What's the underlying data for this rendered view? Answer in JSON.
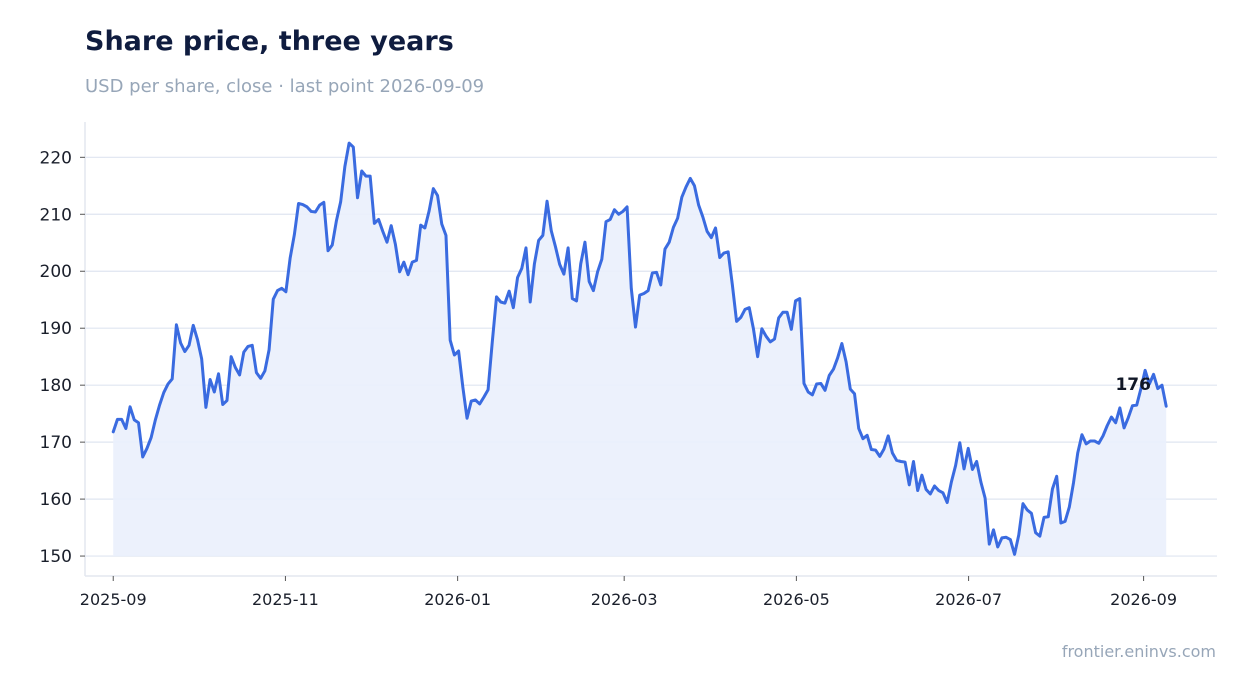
{
  "header": {
    "title": "Share price, three years",
    "subtitle": "USD per share, close · last point 2026-09-09"
  },
  "footer": {
    "credit": "frontier.eninvs.com"
  },
  "colors": {
    "line": "#3a6be0",
    "fill": "#eaf0fc",
    "grid": "#dfe5f1",
    "axis": "#e3e7ef"
  },
  "chart_data": {
    "type": "area",
    "title": "Share price, three years",
    "subtitle": "USD per share, close · last point 2026-09-09",
    "xlabel": "",
    "ylabel": "",
    "x_range": [
      "2025-08-22",
      "2026-09-27"
    ],
    "ylim": [
      146.5,
      226.2
    ],
    "y_ticks": [
      150,
      160,
      170,
      180,
      190,
      200,
      210,
      220
    ],
    "x_ticks": [
      "2025-09",
      "2025-11",
      "2026-01",
      "2026-03",
      "2026-05",
      "2026-07",
      "2026-09"
    ],
    "grid": true,
    "end_label": "176",
    "series": [
      {
        "start_date": "2025-09-01",
        "end_date": "2026-09-09",
        "values": [
          171.8,
          174.0,
          174.0,
          172.4,
          176.2,
          173.9,
          173.4,
          167.4,
          168.9,
          170.8,
          173.9,
          176.5,
          178.7,
          180.2,
          181.1,
          190.6,
          187.4,
          185.9,
          187.0,
          190.5,
          188.0,
          184.6,
          176.1,
          181.0,
          178.8,
          182.0,
          176.6,
          177.3,
          185.0,
          183.1,
          181.8,
          185.8,
          186.8,
          187.0,
          182.2,
          181.2,
          182.5,
          186.2,
          195.1,
          196.6,
          197.0,
          196.4,
          202.3,
          206.4,
          211.9,
          211.7,
          211.3,
          210.5,
          210.4,
          211.6,
          212.1,
          203.6,
          204.6,
          208.9,
          212.2,
          218.4,
          222.5,
          221.8,
          212.9,
          217.6,
          216.7,
          216.7,
          208.4,
          209.1,
          207.0,
          205.1,
          208.0,
          204.7,
          199.9,
          201.6,
          199.4,
          201.6,
          201.9,
          208.1,
          207.6,
          210.6,
          214.5,
          213.3,
          208.3,
          206.3,
          187.9,
          185.3,
          186.0,
          179.7,
          174.2,
          177.2,
          177.4,
          176.7,
          177.9,
          179.2,
          187.6,
          195.5,
          194.6,
          194.4,
          196.5,
          193.6,
          198.9,
          200.5,
          204.1,
          194.6,
          201.3,
          205.4,
          206.3,
          212.3,
          207.1,
          204.3,
          201.2,
          199.5,
          204.1,
          195.2,
          194.8,
          201.3,
          205.1,
          198.2,
          196.6,
          199.9,
          202.1,
          208.7,
          209.1,
          210.8,
          210.0,
          210.5,
          211.3,
          197.0,
          190.2,
          195.8,
          196.1,
          196.6,
          199.7,
          199.8,
          197.6,
          203.9,
          205.1,
          207.7,
          209.3,
          213.0,
          214.8,
          216.3,
          215.0,
          211.6,
          209.5,
          207.0,
          205.9,
          207.6,
          202.4,
          203.2,
          203.4,
          197.6,
          191.2,
          191.9,
          193.3,
          193.6,
          189.9,
          185.0,
          189.9,
          188.6,
          187.6,
          188.1,
          191.8,
          192.8,
          192.8,
          189.8,
          194.8,
          195.2,
          180.3,
          178.8,
          178.3,
          180.2,
          180.3,
          179.1,
          181.7,
          182.8,
          184.8,
          187.3,
          184.1,
          179.3,
          178.5,
          172.4,
          170.6,
          171.2,
          168.7,
          168.6,
          167.5,
          168.8,
          171.1,
          168.1,
          166.8,
          166.6,
          166.5,
          162.5,
          166.6,
          161.5,
          164.2,
          161.7,
          160.9,
          162.3,
          161.5,
          161.1,
          159.4,
          163.0,
          165.9,
          169.9,
          165.3,
          168.9,
          165.2,
          166.6,
          163.0,
          160.2,
          152.1,
          154.6,
          151.6,
          153.2,
          153.3,
          152.9,
          150.3,
          153.7,
          159.2,
          158.1,
          157.5,
          154.1,
          153.5,
          156.8,
          156.9,
          161.8,
          164.0,
          155.8,
          156.1,
          158.6,
          162.9,
          168.1,
          171.3,
          169.7,
          170.2,
          170.2,
          169.8,
          171.1,
          172.9,
          174.4,
          173.4,
          176.0,
          172.5,
          174.3,
          176.4,
          176.5,
          179.4,
          182.6,
          180.2,
          181.9,
          179.4,
          180.0,
          176.3
        ]
      }
    ]
  }
}
